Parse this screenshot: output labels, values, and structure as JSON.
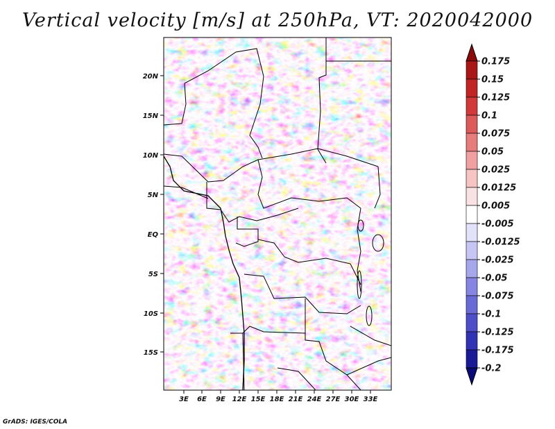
{
  "title": "Vertical velocity [m/s] at 250hPa, VT: 2020042000",
  "footer": "GrADS: IGES/COLA",
  "map": {
    "region": "Central Africa",
    "variable": "Vertical velocity",
    "units": "m/s",
    "level": "250hPa",
    "valid_time": "2020042000",
    "lon_ticks": [
      "3E",
      "6E",
      "9E",
      "12E",
      "15E",
      "18E",
      "21E",
      "24E",
      "27E",
      "30E",
      "33E"
    ],
    "lat_ticks": [
      "20N",
      "15N",
      "10N",
      "5N",
      "EQ",
      "5S",
      "10S",
      "15S"
    ]
  },
  "colorbar": {
    "levels": [
      "0.175",
      "0.15",
      "0.125",
      "0.1",
      "0.075",
      "0.05",
      "0.025",
      "0.0125",
      "0.005",
      "-0.005",
      "-0.0125",
      "-0.025",
      "-0.05",
      "-0.075",
      "-0.1",
      "-0.125",
      "-0.175",
      "-0.2"
    ],
    "colors": [
      "#8c0a0a",
      "#a81616",
      "#c02424",
      "#d03a3a",
      "#dc5a5a",
      "#e67c7c",
      "#f0a0a0",
      "#f7c4c4",
      "#fbe2e2",
      "#ffffff",
      "#e2e2fb",
      "#c6c6f4",
      "#a6a6ec",
      "#8686e2",
      "#6a6ad6",
      "#4e4ec8",
      "#3232b4",
      "#1a1a96",
      "#0a0a78"
    ]
  }
}
